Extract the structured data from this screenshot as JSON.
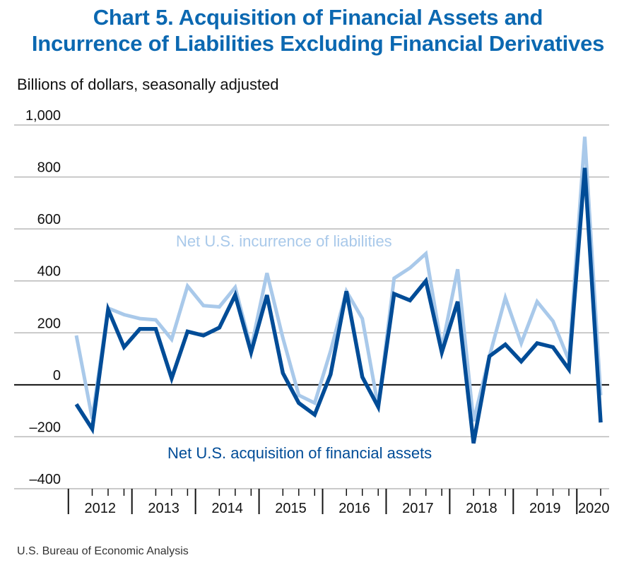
{
  "title_line1": "Chart 5. Acquisition of Financial Assets and",
  "title_line2": "Incurrence of Liabilities Excluding Financial Derivatives",
  "y_unit_label": "Billions of dollars, seasonally adjusted",
  "source": "U.S. Bureau of Economic Analysis",
  "chart_data": {
    "type": "line",
    "ylim": [
      -400,
      1000
    ],
    "yticks": [
      1000,
      800,
      600,
      400,
      200,
      0,
      -200,
      -400
    ],
    "ytick_labels": [
      "1,000",
      "800",
      "600",
      "400",
      "200",
      "0",
      "–200",
      "–400"
    ],
    "years": [
      "2012",
      "2013",
      "2014",
      "2015",
      "2016",
      "2017",
      "2018",
      "2019",
      "2020"
    ],
    "x": [
      "2012Q1",
      "2012Q2",
      "2012Q3",
      "2012Q4",
      "2013Q1",
      "2013Q2",
      "2013Q3",
      "2013Q4",
      "2014Q1",
      "2014Q2",
      "2014Q3",
      "2014Q4",
      "2015Q1",
      "2015Q2",
      "2015Q3",
      "2015Q4",
      "2016Q1",
      "2016Q2",
      "2016Q3",
      "2016Q4",
      "2017Q1",
      "2017Q2",
      "2017Q3",
      "2017Q4",
      "2018Q1",
      "2018Q2",
      "2018Q3",
      "2018Q4",
      "2019Q1",
      "2019Q2",
      "2019Q3",
      "2019Q4",
      "2020Q1",
      "2020Q2"
    ],
    "grid": true,
    "series": [
      {
        "name": "Net U.S. incurrence of liabilities",
        "color": "#a9c9ea",
        "values": [
          190,
          -130,
          295,
          270,
          255,
          250,
          175,
          380,
          305,
          300,
          375,
          140,
          430,
          180,
          -40,
          -70,
          130,
          360,
          255,
          -85,
          410,
          450,
          505,
          140,
          445,
          -140,
          110,
          335,
          160,
          320,
          245,
          95,
          955,
          -40
        ]
      },
      {
        "name": "Net U.S. acquisition of financial assets",
        "color": "#004c97",
        "values": [
          -75,
          -170,
          290,
          145,
          215,
          215,
          25,
          205,
          190,
          220,
          345,
          125,
          345,
          45,
          -70,
          -115,
          40,
          360,
          30,
          -85,
          350,
          325,
          400,
          125,
          320,
          -225,
          110,
          155,
          90,
          160,
          145,
          60,
          835,
          -145
        ]
      }
    ],
    "series_labels": [
      "Net U.S. incurrence of liabilities",
      "Net U.S. acquisition of financial assets"
    ]
  }
}
